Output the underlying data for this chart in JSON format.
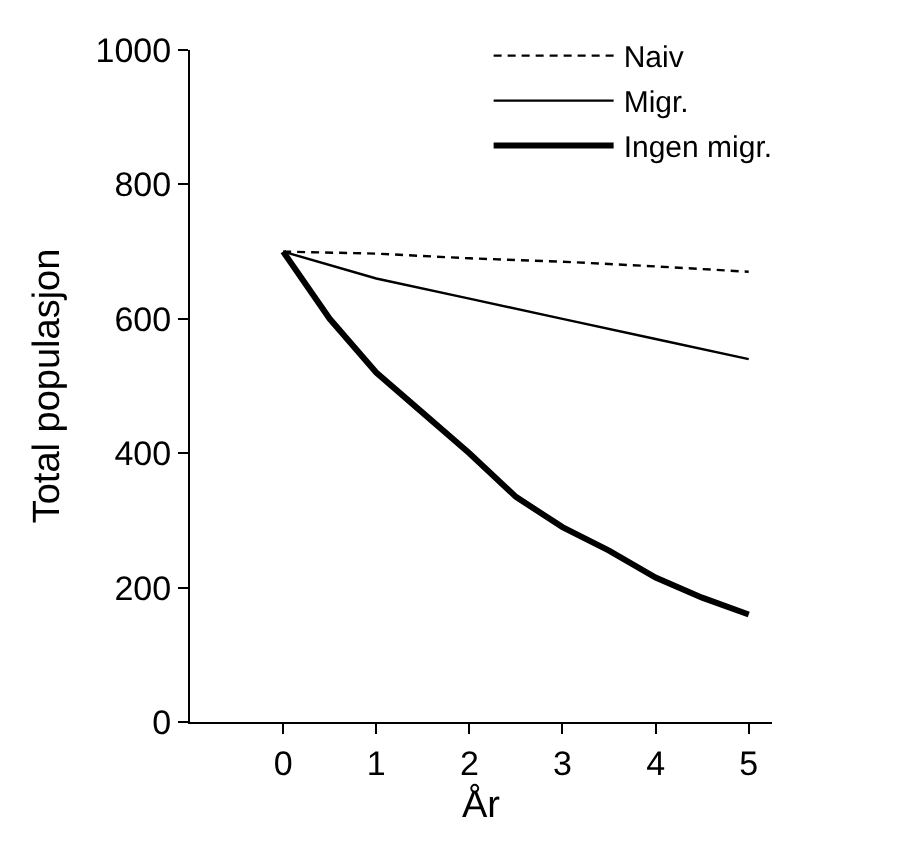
{
  "chart_data": {
    "type": "line",
    "xlabel": "År",
    "ylabel": "Total populasjon",
    "xlim": [
      -1,
      5.25
    ],
    "xticks": [
      0,
      1,
      2,
      3,
      4,
      5
    ],
    "ylim": [
      0,
      1000
    ],
    "yticks": [
      0,
      200,
      400,
      600,
      800,
      1000
    ],
    "legend": "top right",
    "marker": "none",
    "series": [
      {
        "name": "Naiv",
        "color": "#000000",
        "line_style": "dashed",
        "x": [
          0,
          1,
          2,
          3,
          4,
          5
        ],
        "values": [
          700,
          697,
          690,
          685,
          678,
          670
        ]
      },
      {
        "name": "Migr.",
        "color": "#000000",
        "line_style": "solid",
        "x": [
          0,
          1,
          2,
          3,
          4,
          5
        ],
        "values": [
          700,
          660,
          630,
          600,
          570,
          540
        ]
      },
      {
        "name": "Ingen migr.",
        "color": "#000000",
        "line_style": "solid",
        "x": [
          0,
          0.5,
          1,
          1.5,
          2,
          2.5,
          3,
          3.5,
          4,
          4.5,
          5
        ],
        "values": [
          700,
          600,
          520,
          460,
          400,
          335,
          290,
          255,
          215,
          185,
          160
        ]
      }
    ]
  }
}
